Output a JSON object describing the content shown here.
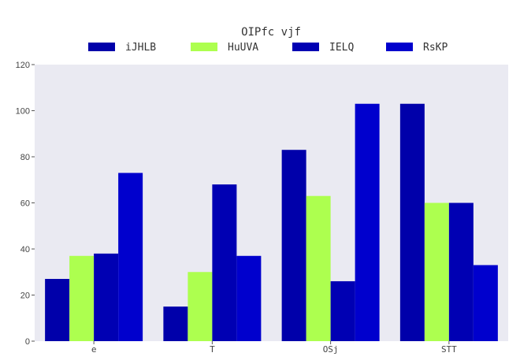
{
  "chart_data": {
    "type": "bar",
    "title": "OIPfc  vjf",
    "categories": [
      "e",
      "T",
      "OSj",
      "STT"
    ],
    "series": [
      {
        "name": "iJHLB",
        "color": "#0000aa",
        "values": [
          27,
          15,
          83,
          103
        ]
      },
      {
        "name": "HuUVA",
        "color": "#adff4f",
        "values": [
          37,
          30,
          63,
          60
        ]
      },
      {
        "name": "IELQ",
        "color": "#0000b3",
        "values": [
          38,
          68,
          26,
          60
        ]
      },
      {
        "name": "RsKP",
        "color": "#0000cd",
        "values": [
          73,
          37,
          103,
          33
        ]
      }
    ],
    "ylim": [
      0,
      120
    ],
    "yticks": [
      0,
      20,
      40,
      60,
      80,
      100,
      120
    ],
    "xlabel": "",
    "ylabel": "",
    "grid": false,
    "legend_position": "top",
    "plot_background": "#eaeaf2"
  }
}
